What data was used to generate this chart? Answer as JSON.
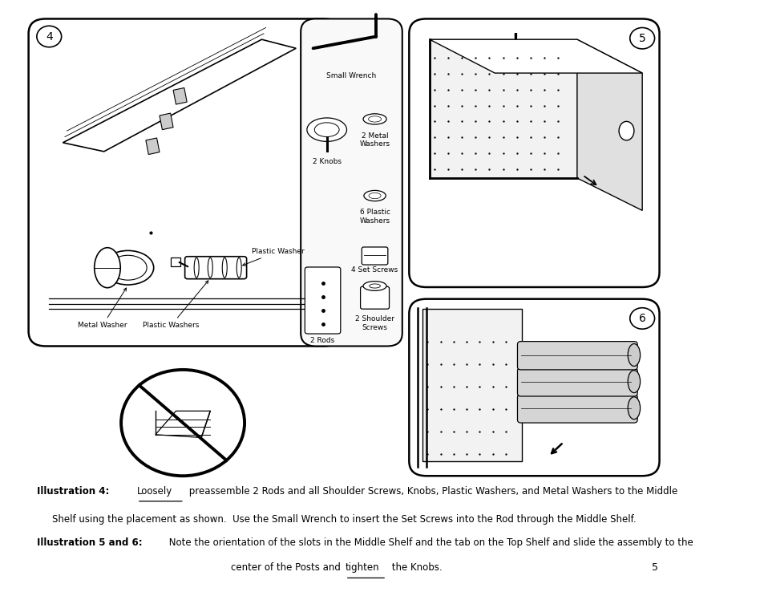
{
  "bg_color": "#ffffff",
  "page_number": "5",
  "illus4_bold": "Illustration 4:",
  "illus4_underline": "Loosely",
  "illus4_rest": " preassemble 2 Rods and all Shoulder Screws, Knobs, Plastic Washers, and Metal Washers to the Middle",
  "illus4_line2": "Shelf using the placement as shown.  Use the Small Wrench to insert the Set Screws into the Rod through the Middle Shelf.",
  "illus56_bold": "Illustration 5 and 6:",
  "illus56_rest": " Note the orientation of the slots in the Middle Shelf and the tab on the Top Shelf and slide the assembly to the",
  "illus56_line2a": "center of the Posts and ",
  "illus56_underline": "tighten",
  "illus56_end": " the Knobs."
}
